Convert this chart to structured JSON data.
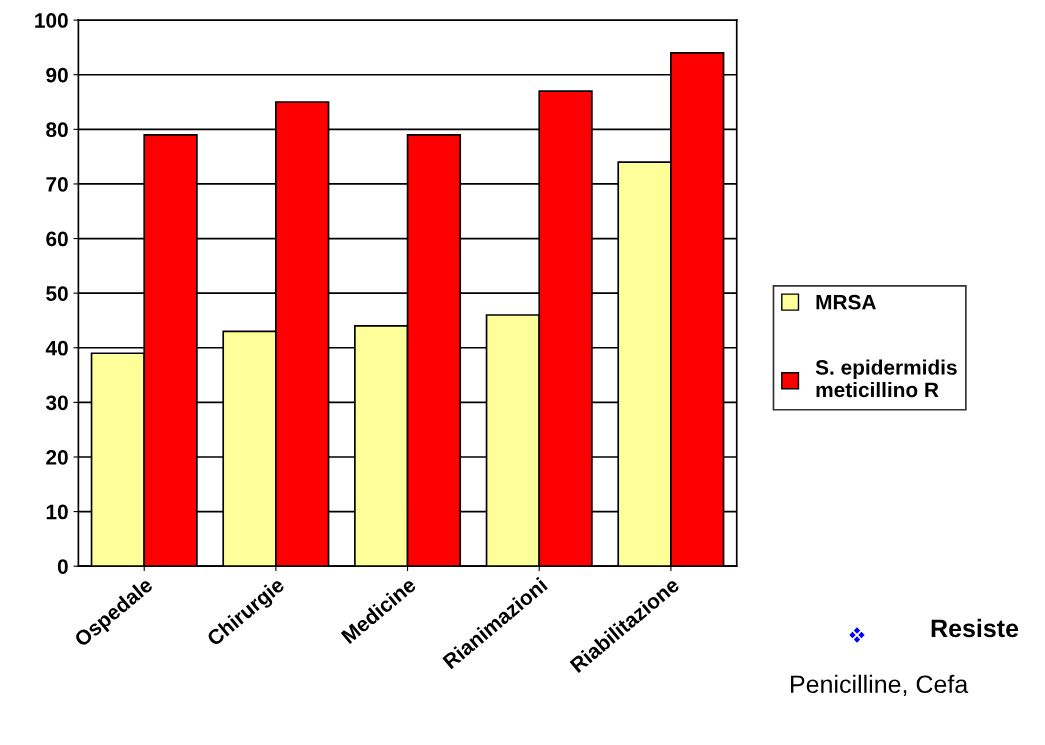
{
  "chart_data": {
    "type": "bar",
    "categories": [
      "Ospedale",
      "Chirurgie",
      "Medicine",
      "Rianimazioni",
      "Riabilitazione"
    ],
    "series": [
      {
        "name": "MRSA",
        "color": "#ffff99",
        "values": [
          39,
          43,
          44,
          46,
          74
        ]
      },
      {
        "name": "S. epidermidis\nmeticillino R",
        "color": "#ff0000",
        "values": [
          79,
          85,
          79,
          87,
          94
        ]
      }
    ],
    "ylim": [
      0,
      100
    ],
    "yticks": [
      0,
      10,
      20,
      30,
      40,
      50,
      60,
      70,
      80,
      90,
      100
    ],
    "grid": "y",
    "legend": "right",
    "annotations": [
      "Resiste",
      "Penicilline, Cefa"
    ]
  }
}
